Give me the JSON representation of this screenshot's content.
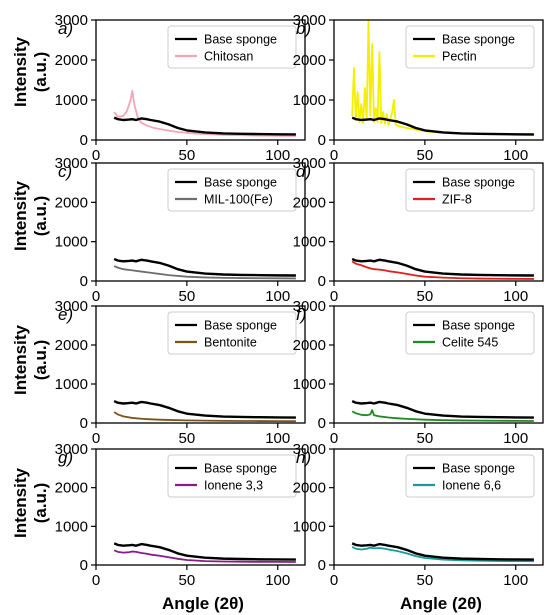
{
  "axis_text": {
    "ylabel_line1": "Intensity",
    "ylabel_line2": "(a.u.)",
    "xlabel": "Angle (2θ)"
  },
  "chart_data": [
    {
      "panel": "a)",
      "type": "line",
      "xlim": [
        0,
        115
      ],
      "ylim": [
        0,
        3000
      ],
      "xticks": [
        0,
        50,
        100
      ],
      "yticks": [
        0,
        1000,
        2000,
        3000
      ],
      "legend_position": "top-right",
      "series": [
        {
          "name": "Base sponge",
          "color": "#000000",
          "x": [
            10,
            12,
            15,
            18,
            20,
            22,
            25,
            28,
            30,
            35,
            40,
            45,
            50,
            60,
            70,
            80,
            90,
            100,
            110
          ],
          "y": [
            560,
            520,
            500,
            510,
            520,
            500,
            540,
            520,
            500,
            460,
            390,
            300,
            240,
            190,
            165,
            155,
            148,
            143,
            140
          ]
        },
        {
          "name": "Chitosan",
          "color": "#f4a6b4",
          "x": [
            10,
            12,
            15,
            17,
            19,
            20,
            21,
            23,
            25,
            28,
            32,
            38,
            45,
            55,
            70,
            90,
            110
          ],
          "y": [
            700,
            580,
            600,
            720,
            1000,
            1230,
            900,
            560,
            430,
            360,
            300,
            250,
            200,
            160,
            130,
            110,
            100
          ]
        }
      ]
    },
    {
      "panel": "b)",
      "type": "line",
      "xlim": [
        0,
        115
      ],
      "ylim": [
        0,
        3000
      ],
      "xticks": [
        0,
        50,
        100
      ],
      "yticks": [
        0,
        1000,
        2000,
        3000
      ],
      "legend_position": "top-right",
      "series": [
        {
          "name": "Base sponge",
          "color": "#000000",
          "x": [
            10,
            12,
            15,
            18,
            20,
            22,
            25,
            28,
            30,
            35,
            40,
            45,
            50,
            60,
            70,
            80,
            90,
            100,
            110
          ],
          "y": [
            560,
            520,
            500,
            510,
            520,
            500,
            540,
            520,
            500,
            460,
            390,
            300,
            240,
            190,
            165,
            155,
            148,
            143,
            140
          ]
        },
        {
          "name": "Pectin",
          "color": "#f2ef00",
          "x": [
            10,
            11,
            12,
            13,
            14,
            15,
            16,
            17,
            18,
            19,
            20,
            21,
            22,
            23,
            24,
            25,
            26,
            27,
            28,
            29,
            30,
            32,
            33,
            34,
            36,
            40,
            45,
            50,
            60,
            70,
            80,
            90,
            100,
            110
          ],
          "y": [
            600,
            1800,
            500,
            1200,
            450,
            900,
            420,
            1300,
            500,
            3000,
            600,
            2400,
            450,
            800,
            450,
            2200,
            420,
            700,
            400,
            650,
            380,
            700,
            1000,
            380,
            340,
            300,
            260,
            220,
            180,
            160,
            150,
            140,
            130,
            120
          ]
        }
      ]
    },
    {
      "panel": "c)",
      "type": "line",
      "xlim": [
        0,
        115
      ],
      "ylim": [
        0,
        3000
      ],
      "xticks": [
        0,
        50,
        100
      ],
      "yticks": [
        0,
        1000,
        2000,
        3000
      ],
      "legend_position": "top-right",
      "series": [
        {
          "name": "Base sponge",
          "color": "#000000",
          "x": [
            10,
            12,
            15,
            18,
            20,
            22,
            25,
            28,
            30,
            35,
            40,
            45,
            50,
            60,
            70,
            80,
            90,
            100,
            110
          ],
          "y": [
            560,
            520,
            500,
            510,
            520,
            500,
            540,
            520,
            500,
            460,
            390,
            300,
            240,
            190,
            165,
            155,
            148,
            143,
            140
          ]
        },
        {
          "name": "MIL-100(Fe)",
          "color": "#6e6e6e",
          "x": [
            10,
            12,
            15,
            20,
            25,
            30,
            35,
            40,
            50,
            60,
            70,
            80,
            90,
            100,
            110
          ],
          "y": [
            380,
            340,
            300,
            270,
            240,
            210,
            180,
            150,
            110,
            90,
            80,
            75,
            70,
            68,
            65
          ]
        }
      ]
    },
    {
      "panel": "d)",
      "type": "line",
      "xlim": [
        0,
        115
      ],
      "ylim": [
        0,
        3000
      ],
      "xticks": [
        0,
        50,
        100
      ],
      "yticks": [
        0,
        1000,
        2000,
        3000
      ],
      "legend_position": "top-right",
      "series": [
        {
          "name": "Base sponge",
          "color": "#000000",
          "x": [
            10,
            12,
            15,
            18,
            20,
            22,
            25,
            28,
            30,
            35,
            40,
            45,
            50,
            60,
            70,
            80,
            90,
            100,
            110
          ],
          "y": [
            560,
            520,
            500,
            510,
            520,
            500,
            540,
            520,
            500,
            460,
            390,
            300,
            240,
            190,
            165,
            155,
            148,
            143,
            140
          ]
        },
        {
          "name": "ZIF-8",
          "color": "#e0201b",
          "x": [
            10,
            12,
            15,
            18,
            20,
            22,
            25,
            28,
            30,
            35,
            40,
            45,
            50,
            60,
            70,
            80,
            90,
            100,
            110
          ],
          "y": [
            500,
            440,
            400,
            350,
            320,
            300,
            290,
            270,
            250,
            220,
            180,
            140,
            110,
            85,
            70,
            62,
            58,
            55,
            52
          ]
        }
      ]
    },
    {
      "panel": "e)",
      "type": "line",
      "xlim": [
        0,
        115
      ],
      "ylim": [
        0,
        3000
      ],
      "xticks": [
        0,
        50,
        100
      ],
      "yticks": [
        0,
        1000,
        2000,
        3000
      ],
      "legend_position": "top-right",
      "series": [
        {
          "name": "Base sponge",
          "color": "#000000",
          "x": [
            10,
            12,
            15,
            18,
            20,
            22,
            25,
            28,
            30,
            35,
            40,
            45,
            50,
            60,
            70,
            80,
            90,
            100,
            110
          ],
          "y": [
            560,
            520,
            500,
            510,
            520,
            500,
            540,
            520,
            500,
            460,
            390,
            300,
            240,
            190,
            165,
            155,
            148,
            143,
            140
          ]
        },
        {
          "name": "Bentonite",
          "color": "#7a5518",
          "x": [
            10,
            12,
            15,
            20,
            25,
            30,
            35,
            40,
            50,
            60,
            70,
            80,
            90,
            100,
            110
          ],
          "y": [
            280,
            220,
            170,
            130,
            110,
            95,
            85,
            78,
            68,
            60,
            55,
            52,
            50,
            48,
            46
          ]
        }
      ]
    },
    {
      "panel": "f)",
      "type": "line",
      "xlim": [
        0,
        115
      ],
      "ylim": [
        0,
        3000
      ],
      "xticks": [
        0,
        50,
        100
      ],
      "yticks": [
        0,
        1000,
        2000,
        3000
      ],
      "legend_position": "top-right",
      "series": [
        {
          "name": "Base sponge",
          "color": "#000000",
          "x": [
            10,
            12,
            15,
            18,
            20,
            22,
            25,
            28,
            30,
            35,
            40,
            45,
            50,
            60,
            70,
            80,
            90,
            100,
            110
          ],
          "y": [
            560,
            520,
            500,
            510,
            520,
            500,
            540,
            520,
            500,
            460,
            390,
            300,
            240,
            190,
            165,
            155,
            148,
            143,
            140
          ]
        },
        {
          "name": "Celite 545",
          "color": "#1f8a1f",
          "x": [
            10,
            12,
            15,
            18,
            20,
            21,
            22,
            25,
            30,
            35,
            40,
            50,
            60,
            70,
            80,
            90,
            100,
            110
          ],
          "y": [
            300,
            250,
            210,
            200,
            220,
            330,
            200,
            170,
            140,
            120,
            105,
            85,
            72,
            65,
            60,
            57,
            55,
            52
          ]
        }
      ]
    },
    {
      "panel": "g)",
      "type": "line",
      "xlim": [
        0,
        115
      ],
      "ylim": [
        0,
        3000
      ],
      "xticks": [
        0,
        50,
        100
      ],
      "yticks": [
        0,
        1000,
        2000,
        3000
      ],
      "legend_position": "top-right",
      "series": [
        {
          "name": "Base sponge",
          "color": "#000000",
          "x": [
            10,
            12,
            15,
            18,
            20,
            22,
            25,
            28,
            30,
            35,
            40,
            45,
            50,
            60,
            70,
            80,
            90,
            100,
            110
          ],
          "y": [
            560,
            520,
            500,
            510,
            520,
            500,
            540,
            520,
            500,
            460,
            390,
            300,
            240,
            190,
            165,
            155,
            148,
            143,
            140
          ]
        },
        {
          "name": "Ionene 3,3",
          "color": "#8a1a8a",
          "x": [
            10,
            12,
            15,
            18,
            20,
            22,
            25,
            28,
            30,
            35,
            40,
            45,
            50,
            60,
            70,
            80,
            90,
            100,
            110
          ],
          "y": [
            380,
            340,
            320,
            330,
            350,
            340,
            310,
            290,
            270,
            240,
            200,
            160,
            130,
            100,
            90,
            85,
            82,
            80,
            78
          ]
        }
      ]
    },
    {
      "panel": "h)",
      "type": "line",
      "xlim": [
        0,
        115
      ],
      "ylim": [
        0,
        3000
      ],
      "xticks": [
        0,
        50,
        100
      ],
      "yticks": [
        0,
        1000,
        2000,
        3000
      ],
      "legend_position": "top-right",
      "series": [
        {
          "name": "Base sponge",
          "color": "#000000",
          "x": [
            10,
            12,
            15,
            18,
            20,
            22,
            25,
            28,
            30,
            35,
            40,
            45,
            50,
            60,
            70,
            80,
            90,
            100,
            110
          ],
          "y": [
            560,
            520,
            500,
            510,
            520,
            500,
            540,
            520,
            500,
            460,
            390,
            300,
            240,
            190,
            165,
            155,
            148,
            143,
            140
          ]
        },
        {
          "name": "Ionene 6,6",
          "color": "#1a9a9a",
          "x": [
            10,
            12,
            15,
            18,
            20,
            22,
            25,
            28,
            30,
            35,
            40,
            45,
            50,
            60,
            70,
            80,
            90,
            100,
            110
          ],
          "y": [
            470,
            420,
            400,
            420,
            450,
            430,
            440,
            420,
            400,
            360,
            300,
            230,
            180,
            140,
            120,
            110,
            105,
            100,
            98
          ]
        }
      ]
    }
  ]
}
